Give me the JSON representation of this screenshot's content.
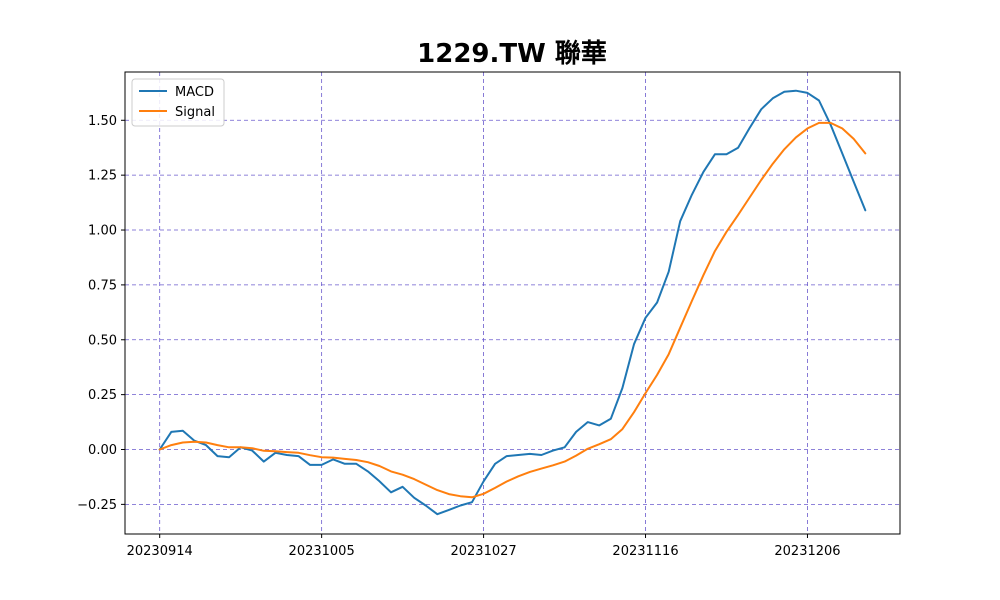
{
  "chart_data": {
    "type": "line",
    "title": "1229.TW 聯華",
    "xlabel": "",
    "ylabel": "",
    "x_tick_labels": [
      "20230914",
      "20231005",
      "20231027",
      "20231116",
      "20231206"
    ],
    "x_tick_indices": [
      0,
      14,
      28,
      42,
      56
    ],
    "y_ticks": [
      -0.25,
      0.0,
      0.25,
      0.5,
      0.75,
      1.0,
      1.25,
      1.5
    ],
    "y_tick_labels": [
      "−0.25",
      "0.00",
      "0.25",
      "0.50",
      "0.75",
      "1.00",
      "1.25",
      "1.50"
    ],
    "xlim": [
      -3,
      64
    ],
    "ylim": [
      -0.385,
      1.72
    ],
    "grid": true,
    "legend_position": "top-left",
    "series": [
      {
        "name": "MACD",
        "color": "#1f77b4",
        "values": [
          0.0,
          0.08,
          0.085,
          0.04,
          0.02,
          -0.03,
          -0.035,
          0.01,
          -0.005,
          -0.055,
          -0.015,
          -0.025,
          -0.03,
          -0.07,
          -0.07,
          -0.045,
          -0.065,
          -0.065,
          -0.1,
          -0.145,
          -0.195,
          -0.17,
          -0.22,
          -0.255,
          -0.295,
          -0.275,
          -0.255,
          -0.24,
          -0.145,
          -0.065,
          -0.03,
          -0.025,
          -0.02,
          -0.025,
          -0.005,
          0.01,
          0.08,
          0.125,
          0.11,
          0.14,
          0.28,
          0.48,
          0.6,
          0.67,
          0.81,
          1.04,
          1.16,
          1.265,
          1.345,
          1.345,
          1.375,
          1.465,
          1.55,
          1.6,
          1.63,
          1.635,
          1.625,
          1.59,
          1.48,
          1.35,
          1.22,
          1.09
        ]
      },
      {
        "name": "Signal",
        "color": "#ff7f0e",
        "values": [
          0.0,
          0.02,
          0.032,
          0.035,
          0.032,
          0.02,
          0.01,
          0.01,
          0.006,
          -0.006,
          -0.008,
          -0.012,
          -0.015,
          -0.026,
          -0.035,
          -0.037,
          -0.043,
          -0.048,
          -0.058,
          -0.075,
          -0.1,
          -0.115,
          -0.135,
          -0.16,
          -0.185,
          -0.203,
          -0.213,
          -0.218,
          -0.202,
          -0.175,
          -0.146,
          -0.122,
          -0.102,
          -0.087,
          -0.072,
          -0.055,
          -0.028,
          0.003,
          0.024,
          0.047,
          0.093,
          0.17,
          0.257,
          0.34,
          0.434,
          0.555,
          0.676,
          0.794,
          0.904,
          0.992,
          1.069,
          1.148,
          1.228,
          1.302,
          1.368,
          1.422,
          1.463,
          1.488,
          1.488,
          1.463,
          1.415,
          1.349
        ]
      }
    ]
  },
  "style": {
    "grid_color": "#6a5acd",
    "axes_color": "#000000"
  }
}
